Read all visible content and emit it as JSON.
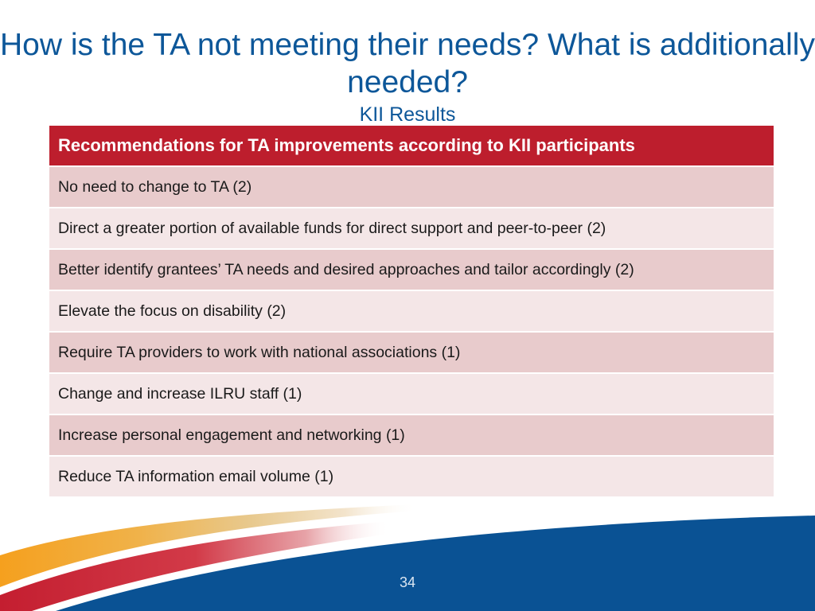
{
  "slide": {
    "title": "How is the TA not meeting their needs? What is additionally needed?",
    "subtitle": "KII Results",
    "page_number": "34"
  },
  "table": {
    "header": "Recommendations for TA improvements according to KII participants",
    "rows": [
      "No need to change to TA (2)",
      "Direct a greater portion of available funds for direct support and peer-to-peer (2)",
      "Better identify grantees’ TA needs and desired approaches and tailor accordingly (2)",
      "Elevate the focus on disability (2)",
      "Require TA providers to work with national associations (1)",
      "Change and increase ILRU staff (1)",
      "Increase personal engagement and networking (1)",
      "Reduce TA information email volume (1)"
    ]
  },
  "colors": {
    "title_blue": "#0d5799",
    "header_red": "#bd1e2d",
    "row_dark": "#e8cbcc",
    "row_light": "#f4e6e7",
    "footer_blue": "#0a5294",
    "swoosh_orange": "#f5a01e",
    "swoosh_red": "#c41e30"
  }
}
